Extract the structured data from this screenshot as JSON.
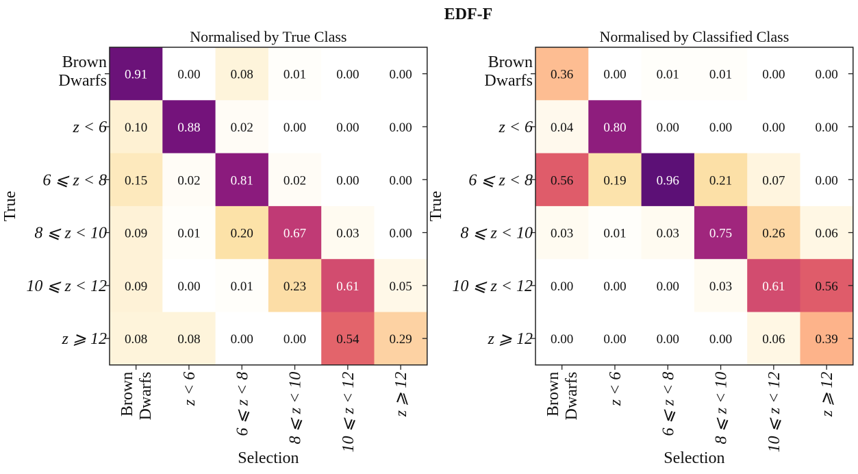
{
  "chart_data": {
    "type": "heatmap",
    "suptitle": "EDF-F",
    "colormap": "magma_r",
    "classes": [
      "Brown Dwarfs",
      "z < 6",
      "6 ⩽ z < 8",
      "8 ⩽ z < 10",
      "10 ⩽ z < 12",
      "z ⩾ 12"
    ],
    "class_labels": [
      {
        "lines": [
          "Brown",
          "Dwarfs"
        ],
        "italic": false
      },
      {
        "lines": [
          "z < 6"
        ],
        "italic": true
      },
      {
        "lines": [
          "6 ⩽ z < 8"
        ],
        "italic": true
      },
      {
        "lines": [
          "8 ⩽ z < 10"
        ],
        "italic": true
      },
      {
        "lines": [
          "10 ⩽ z < 12"
        ],
        "italic": true
      },
      {
        "lines": [
          "z ⩾ 12"
        ],
        "italic": true
      }
    ],
    "panels": [
      {
        "title": "Normalised by True Class",
        "xlabel": "Selection",
        "ylabel": "True",
        "matrix": [
          [
            0.91,
            0.0,
            0.08,
            0.01,
            0.0,
            0.0
          ],
          [
            0.1,
            0.88,
            0.02,
            0.0,
            0.0,
            0.0
          ],
          [
            0.15,
            0.02,
            0.81,
            0.02,
            0.0,
            0.0
          ],
          [
            0.09,
            0.01,
            0.2,
            0.67,
            0.03,
            0.0
          ],
          [
            0.09,
            0.0,
            0.01,
            0.23,
            0.61,
            0.05
          ],
          [
            0.08,
            0.08,
            0.0,
            0.0,
            0.54,
            0.29
          ]
        ]
      },
      {
        "title": "Normalised by Classified Class",
        "xlabel": "Selection",
        "ylabel": "True",
        "matrix": [
          [
            0.36,
            0.0,
            0.01,
            0.01,
            0.0,
            0.0
          ],
          [
            0.04,
            0.8,
            0.0,
            0.0,
            0.0,
            0.0
          ],
          [
            0.56,
            0.19,
            0.96,
            0.21,
            0.07,
            0.0
          ],
          [
            0.03,
            0.01,
            0.03,
            0.75,
            0.26,
            0.06
          ],
          [
            0.0,
            0.0,
            0.0,
            0.03,
            0.61,
            0.56
          ],
          [
            0.0,
            0.0,
            0.0,
            0.0,
            0.06,
            0.39
          ]
        ]
      }
    ]
  }
}
